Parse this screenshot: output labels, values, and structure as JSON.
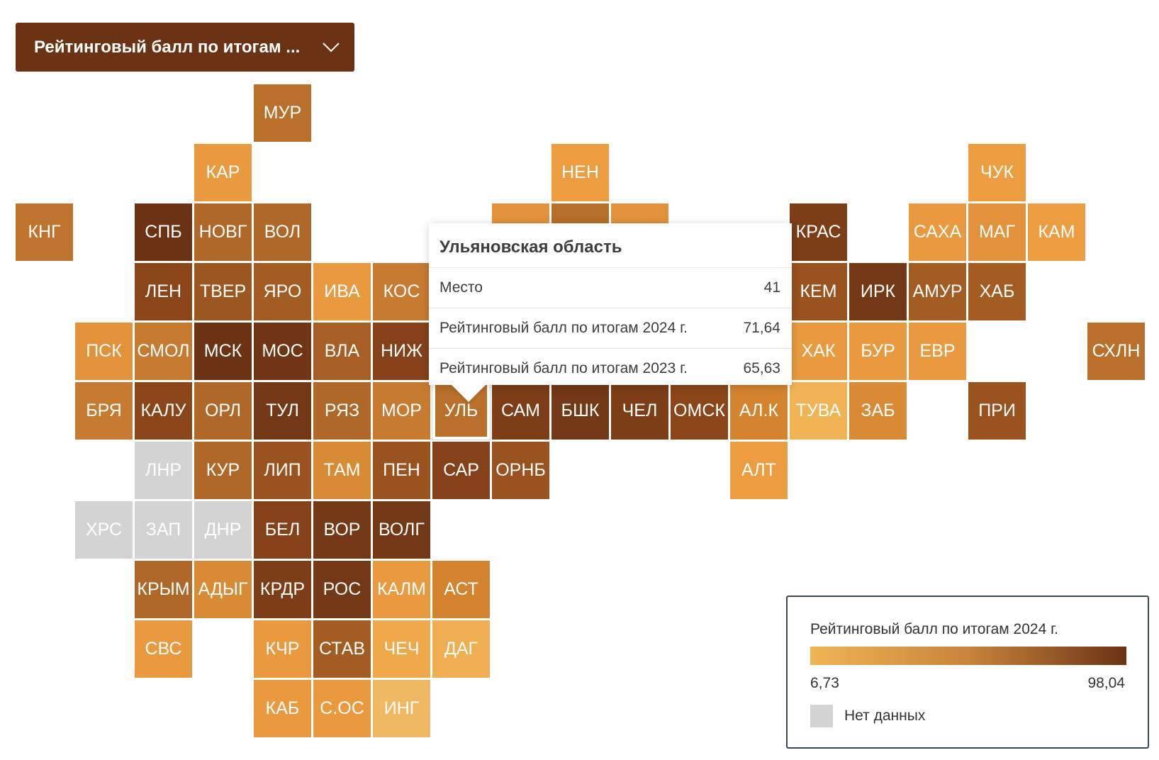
{
  "dropdown": {
    "label": "Рейтинговый балл по итогам ...",
    "icon": "chevron-down-icon"
  },
  "colors": {
    "scale_low": "#f0b455",
    "scale_high": "#6b3313",
    "no_data": "#d3d3d3",
    "dropdown_bg": "#6b3313"
  },
  "regions": [
    {
      "code": "МУР",
      "color": "#b9702b"
    },
    {
      "code": "КАР",
      "color": "#e99a3e"
    },
    {
      "code": "НЕН",
      "color": "#eb9d40"
    },
    {
      "code": "ЧУК",
      "color": "#eb9d40"
    },
    {
      "code": "КНГ",
      "color": "#bf742d"
    },
    {
      "code": "СПБ",
      "color": "#6b3313"
    },
    {
      "code": "НОВГ",
      "color": "#b06829"
    },
    {
      "code": "ВОЛ",
      "color": "#b06829"
    },
    {
      "code": "",
      "color": "#e2923a"
    },
    {
      "code": "",
      "color": "#b77029"
    },
    {
      "code": "",
      "color": "#e2923a"
    },
    {
      "code": "КРАС",
      "color": "#7c3d17"
    },
    {
      "code": "САХА",
      "color": "#e99a3e"
    },
    {
      "code": "МАГ",
      "color": "#e2923a"
    },
    {
      "code": "КАМ",
      "color": "#eb9d40"
    },
    {
      "code": "ЛЕН",
      "color": "#8a4519"
    },
    {
      "code": "ТВЕР",
      "color": "#9c561f"
    },
    {
      "code": "ЯРО",
      "color": "#a35c22"
    },
    {
      "code": "ИВА",
      "color": "#e99a3e"
    },
    {
      "code": "КОС",
      "color": "#c77b31"
    },
    {
      "code": "КЕМ",
      "color": "#9a521e"
    },
    {
      "code": "ИРК",
      "color": "#733815"
    },
    {
      "code": "АМУР",
      "color": "#a35c22"
    },
    {
      "code": "ХАБ",
      "color": "#a35c22"
    },
    {
      "code": "ПСК",
      "color": "#e2923a"
    },
    {
      "code": "СМОЛ",
      "color": "#c77b31"
    },
    {
      "code": "МСК",
      "color": "#6b3313"
    },
    {
      "code": "МОС",
      "color": "#6f3514"
    },
    {
      "code": "ВЛА",
      "color": "#a85f25"
    },
    {
      "code": "НИЖ",
      "color": "#85411a"
    },
    {
      "code": "ХАК",
      "color": "#e99a3e"
    },
    {
      "code": "БУР",
      "color": "#e99a3e"
    },
    {
      "code": "ЕВР",
      "color": "#e99a3e"
    },
    {
      "code": "СХЛН",
      "color": "#b9702b"
    },
    {
      "code": "БРЯ",
      "color": "#c77b31"
    },
    {
      "code": "КАЛУ",
      "color": "#8a4519"
    },
    {
      "code": "ОРЛ",
      "color": "#b06829"
    },
    {
      "code": "ТУЛ",
      "color": "#733815"
    },
    {
      "code": "РЯЗ",
      "color": "#b06829"
    },
    {
      "code": "МОР",
      "color": "#c77b31"
    },
    {
      "code": "УЛЬ",
      "color": "#b9702b"
    },
    {
      "code": "САМ",
      "color": "#7c3d17"
    },
    {
      "code": "БШК",
      "color": "#733815"
    },
    {
      "code": "ЧЕЛ",
      "color": "#7c3d17"
    },
    {
      "code": "ОМСК",
      "color": "#8a4519"
    },
    {
      "code": "АЛ.К",
      "color": "#d4832f"
    },
    {
      "code": "ТУВА",
      "color": "#f0b455"
    },
    {
      "code": "ЗАБ",
      "color": "#d98a35"
    },
    {
      "code": "ПРИ",
      "color": "#9a521e"
    },
    {
      "code": "ЛНР",
      "color": "#d3d3d3"
    },
    {
      "code": "КУР",
      "color": "#b06829"
    },
    {
      "code": "ЛИП",
      "color": "#9a521e"
    },
    {
      "code": "ТАМ",
      "color": "#d98a35"
    },
    {
      "code": "ПЕН",
      "color": "#9a521e"
    },
    {
      "code": "САР",
      "color": "#85411a"
    },
    {
      "code": "ОРНБ",
      "color": "#9a521e"
    },
    {
      "code": "АЛТ",
      "color": "#eb9d40"
    },
    {
      "code": "ХРС",
      "color": "#d3d3d3"
    },
    {
      "code": "ЗАП",
      "color": "#d3d3d3"
    },
    {
      "code": "ДНР",
      "color": "#d3d3d3"
    },
    {
      "code": "БЕЛ",
      "color": "#85411a"
    },
    {
      "code": "ВОР",
      "color": "#733815"
    },
    {
      "code": "ВОЛГ",
      "color": "#733815"
    },
    {
      "code": "КРЫМ",
      "color": "#b06829"
    },
    {
      "code": "АДЫГ",
      "color": "#d98a35"
    },
    {
      "code": "КРДР",
      "color": "#7c3d17"
    },
    {
      "code": "РОС",
      "color": "#733815"
    },
    {
      "code": "КАЛМ",
      "color": "#e99a3e"
    },
    {
      "code": "АСТ",
      "color": "#d4832f"
    },
    {
      "code": "СВС",
      "color": "#e99a3e"
    },
    {
      "code": "КЧР",
      "color": "#e99a3e"
    },
    {
      "code": "СТАВ",
      "color": "#a35c22"
    },
    {
      "code": "ЧЕЧ",
      "color": "#eeaa4a"
    },
    {
      "code": "ДАГ",
      "color": "#efae4f"
    },
    {
      "code": "КАБ",
      "color": "#e99a3e"
    },
    {
      "code": "С.ОС",
      "color": "#e99a3e"
    },
    {
      "code": "ИНГ",
      "color": "#f0b862"
    }
  ],
  "tooltip": {
    "region_name": "Ульяновская область",
    "rows": [
      {
        "label": "Место",
        "value": "41"
      },
      {
        "label": "Рейтинговый балл по итогам 2024 г.",
        "value": "71,64"
      },
      {
        "label": "Рейтинговый балл по итогам 2023 г.",
        "value": "65,63"
      }
    ]
  },
  "legend": {
    "title": "Рейтинговый балл по итогам 2024 г.",
    "min": "6,73",
    "max": "98,04",
    "no_data_label": "Нет данных"
  }
}
